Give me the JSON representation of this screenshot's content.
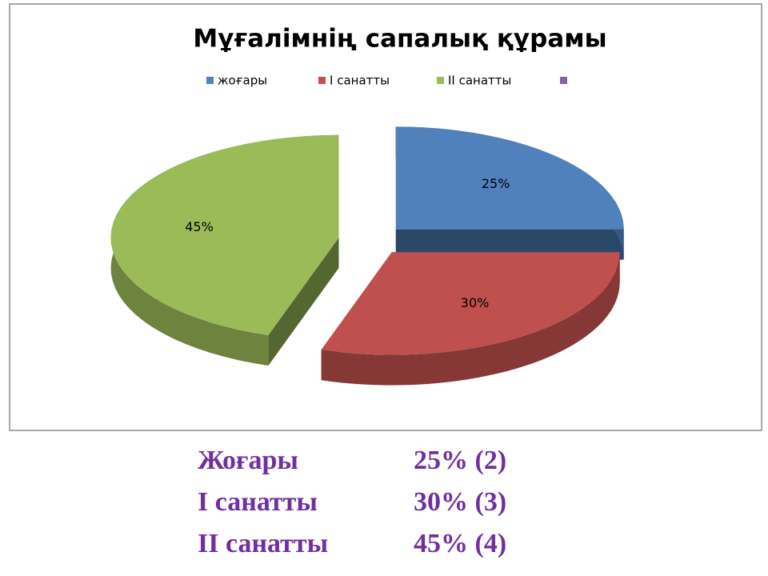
{
  "chart_data": {
    "type": "pie",
    "title": "Мұғалімнің сапалық құрамы",
    "categories": [
      "жоғары",
      "І санатты",
      "ІІ санатты",
      null
    ],
    "values": [
      25,
      30,
      45,
      null
    ],
    "value_labels": [
      "25%",
      "30%",
      "45%",
      null
    ],
    "colors": [
      "#4f81bd",
      "#c0504d",
      "#9bbb59",
      "#8064a2"
    ],
    "legend": "top"
  },
  "summary": {
    "rows": [
      [
        "Жоғары",
        "25% (2)"
      ],
      [
        "І санатты",
        "30% (3)"
      ],
      [
        "ІІ санатты",
        "45% (4)"
      ]
    ]
  }
}
